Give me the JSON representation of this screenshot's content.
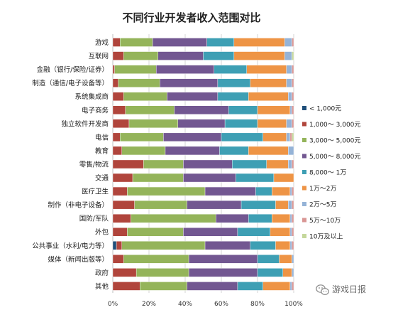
{
  "chart_data": {
    "type": "bar",
    "orientation": "horizontal",
    "stacked": true,
    "title": "不同行业开发者收入范围对比",
    "xlim": [
      0,
      100
    ],
    "x_ticks": [
      "0%",
      "20%",
      "40%",
      "60%",
      "80%",
      "100%"
    ],
    "grid": true,
    "legend_position": "right",
    "categories": [
      "游戏",
      "互联网",
      "金融（银行/保险/证券）",
      "制造（通信/电子设备等）",
      "系统集成商",
      "电子商务",
      "独立软件开发商",
      "电信",
      "教育",
      "零售/物流",
      "交通",
      "医疗卫生",
      "制作（非电子设备）",
      "国防/军队",
      "外包",
      "公共事业（水利/电力等）",
      "媒体（新闻出版等）",
      "政府",
      "其他"
    ],
    "series": [
      {
        "name": "< 1,000元",
        "color": "#1f4f7a",
        "values": [
          0,
          0,
          0,
          0,
          0,
          0,
          0,
          0,
          0,
          0,
          0,
          0,
          0,
          0,
          0,
          2,
          0,
          0,
          0
        ]
      },
      {
        "name": "1,000～ 3,000元",
        "color": "#b0453c",
        "values": [
          4,
          6,
          1,
          3,
          6,
          7,
          9,
          4,
          5,
          17,
          11,
          8,
          12,
          10,
          8,
          3,
          6,
          13,
          15
        ]
      },
      {
        "name": "3,000～ 5,000元",
        "color": "#94b45a",
        "values": [
          18,
          19,
          23,
          23,
          24,
          27,
          27,
          24,
          24,
          22,
          28,
          43,
          29,
          47,
          31,
          46,
          36,
          29,
          26
        ]
      },
      {
        "name": "5,000～ 8,000元",
        "color": "#725791",
        "values": [
          30,
          25,
          32,
          32,
          28,
          30,
          26,
          32,
          30,
          27,
          29,
          28,
          30,
          18,
          30,
          25,
          38,
          38,
          28
        ]
      },
      {
        "name": "8,000～ 1万",
        "color": "#3e9fb4",
        "values": [
          15,
          17,
          18,
          18,
          17,
          16,
          18,
          23,
          16,
          19,
          21,
          9,
          19,
          13,
          18,
          14,
          12,
          14,
          14
        ]
      },
      {
        "name": "1万～2万",
        "color": "#ee9445",
        "values": [
          28,
          28,
          22,
          20,
          22,
          18,
          16,
          13,
          22,
          12,
          11,
          10,
          7,
          10,
          11,
          8,
          7,
          5,
          15
        ]
      },
      {
        "name": "2万～5万",
        "color": "#95b3d7",
        "values": [
          4,
          4,
          3,
          3,
          2,
          1,
          3,
          2,
          3,
          2,
          0,
          1,
          2,
          1,
          1,
          1,
          1,
          1,
          1
        ]
      },
      {
        "name": "5万～10万",
        "color": "#d99694",
        "values": [
          1,
          0,
          1,
          1,
          1,
          1,
          1,
          1,
          0,
          1,
          0,
          1,
          1,
          1,
          1,
          1,
          0,
          0,
          1
        ]
      },
      {
        "name": "10万及以上",
        "color": "#c4d79b",
        "values": [
          0,
          1,
          0,
          0,
          0,
          0,
          0,
          1,
          0,
          0,
          0,
          0,
          0,
          0,
          0,
          0,
          0,
          0,
          0
        ]
      }
    ]
  },
  "watermark": {
    "text": "游戏日报",
    "icon": "wechat-icon"
  }
}
